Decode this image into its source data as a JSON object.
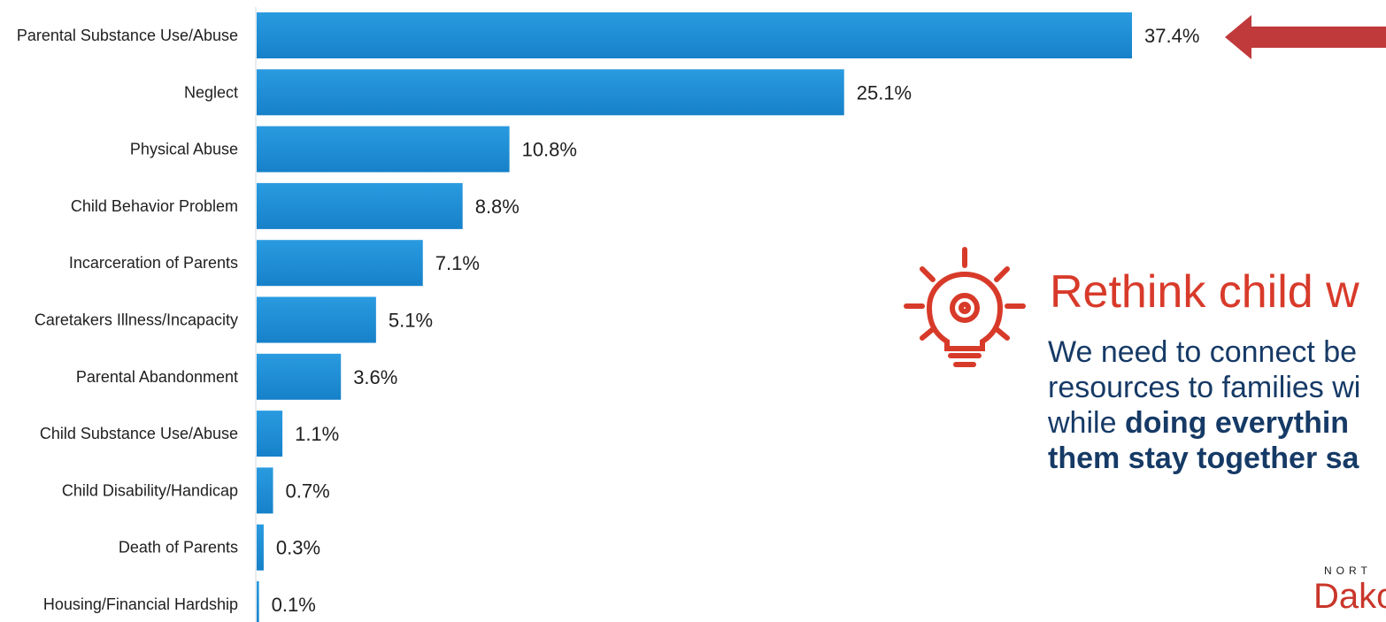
{
  "chart_data": {
    "type": "bar",
    "orientation": "horizontal",
    "categories": [
      "Parental Substance Use/Abuse",
      "Neglect",
      "Physical Abuse",
      "Child Behavior Problem",
      "Incarceration of Parents",
      "Caretakers Illness/Incapacity",
      "Parental Abandonment",
      "Child Substance Use/Abuse",
      "Child Disability/Handicap",
      "Death of Parents",
      "Housing/Financial Hardship"
    ],
    "values": [
      37.4,
      25.1,
      10.8,
      8.8,
      7.1,
      5.1,
      3.6,
      1.1,
      0.7,
      0.3,
      0.1
    ],
    "value_labels": [
      "37.4%",
      "25.1%",
      "10.8%",
      "8.8%",
      "7.1%",
      "5.1%",
      "3.6%",
      "1.1%",
      "0.7%",
      "0.3%",
      "0.1%"
    ],
    "title": "",
    "xlabel": "",
    "ylabel": "",
    "grid": false,
    "legend": "none",
    "bar_color": "#1f8fd6",
    "annotation_arrow_color": "#c0393b"
  },
  "callout": {
    "icon": "lightbulb-gear-icon",
    "icon_color": "#d83a2a",
    "title": "Rethink child w",
    "body_line1": "We need to connect be",
    "body_line2": "resources to families wi",
    "body_line3_prefix": "while ",
    "body_line3_bold": "doing everythin",
    "body_line4_bold": "them stay together sa"
  },
  "logo": {
    "top_text": "NORT",
    "main_text": "Dako"
  }
}
